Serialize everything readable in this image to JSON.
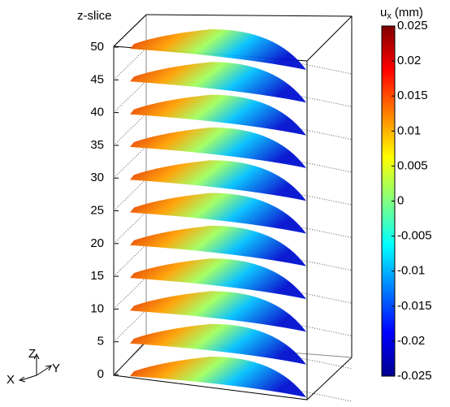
{
  "chart_data": {
    "type": "slices3d",
    "zlabel": "z-slice",
    "zlim": [
      0,
      50
    ],
    "zticks": [
      0,
      5,
      10,
      15,
      20,
      25,
      30,
      35,
      40,
      45,
      50
    ],
    "slices": [
      0,
      5,
      10,
      15,
      20,
      25,
      30,
      35,
      40,
      45,
      50
    ],
    "colorbar": {
      "label": {
        "base": "u",
        "sub": "x",
        "unit": "(mm)"
      },
      "clim": [
        -0.025,
        0.025
      ],
      "ticks": [
        -0.025,
        -0.02,
        -0.015,
        -0.01,
        -0.005,
        0,
        0.005,
        0.01,
        0.015,
        0.02,
        0.025
      ],
      "colormap": [
        "#00008f",
        "#0000ff",
        "#0080ff",
        "#00ffff",
        "#80ff80",
        "#ffff00",
        "#ff8000",
        "#ff0000",
        "#800000"
      ]
    },
    "axes_triad": {
      "x": "X",
      "y": "Y",
      "z": "Z"
    }
  }
}
